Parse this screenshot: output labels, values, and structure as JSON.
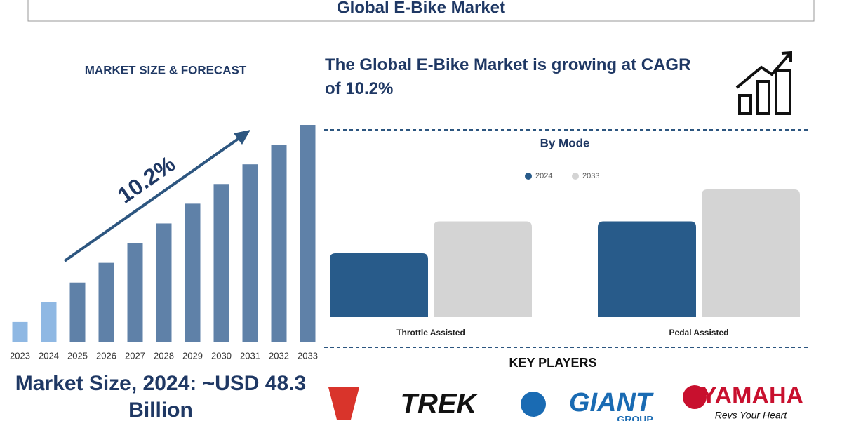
{
  "header": {
    "title": "Global E-Bike Market"
  },
  "headline": "The Global E-Bike Market is growing at CAGR of 10.2%",
  "market_size": "Market Size, 2024: ~USD 48.3 Billion",
  "key_players": {
    "title": "KEY PLAYERS",
    "logos": [
      "TREK",
      "GIANT",
      "GROUP",
      "YAMAHA",
      "Revs Your Heart"
    ]
  },
  "chart_data": [
    {
      "type": "bar",
      "title": "MARKET SIZE & FORECAST",
      "categories": [
        "2023",
        "2024",
        "2025",
        "2026",
        "2027",
        "2028",
        "2029",
        "2030",
        "2031",
        "2032",
        "2033"
      ],
      "values": [
        1,
        2,
        3,
        4,
        5,
        6,
        7,
        8,
        9,
        10,
        11
      ],
      "colors": [
        "#8fb8e3",
        "#8fb8e3",
        "#5f81a8",
        "#5f81a8",
        "#5f81a8",
        "#5f81a8",
        "#5f81a8",
        "#5f81a8",
        "#5f81a8",
        "#5f81a8",
        "#5f81a8"
      ],
      "ylim": [
        0,
        11
      ],
      "annotation": "10.2%"
    },
    {
      "type": "grouped-bar",
      "title": "By Mode",
      "categories": [
        "Throttle Assisted",
        "Pedal Assisted"
      ],
      "series": [
        {
          "name": "2024",
          "color": "#285b8a",
          "values": [
            2,
            3
          ]
        },
        {
          "name": "2033",
          "color": "#d4d4d4",
          "values": [
            3,
            4
          ]
        }
      ],
      "ylim": [
        0,
        4
      ]
    }
  ]
}
